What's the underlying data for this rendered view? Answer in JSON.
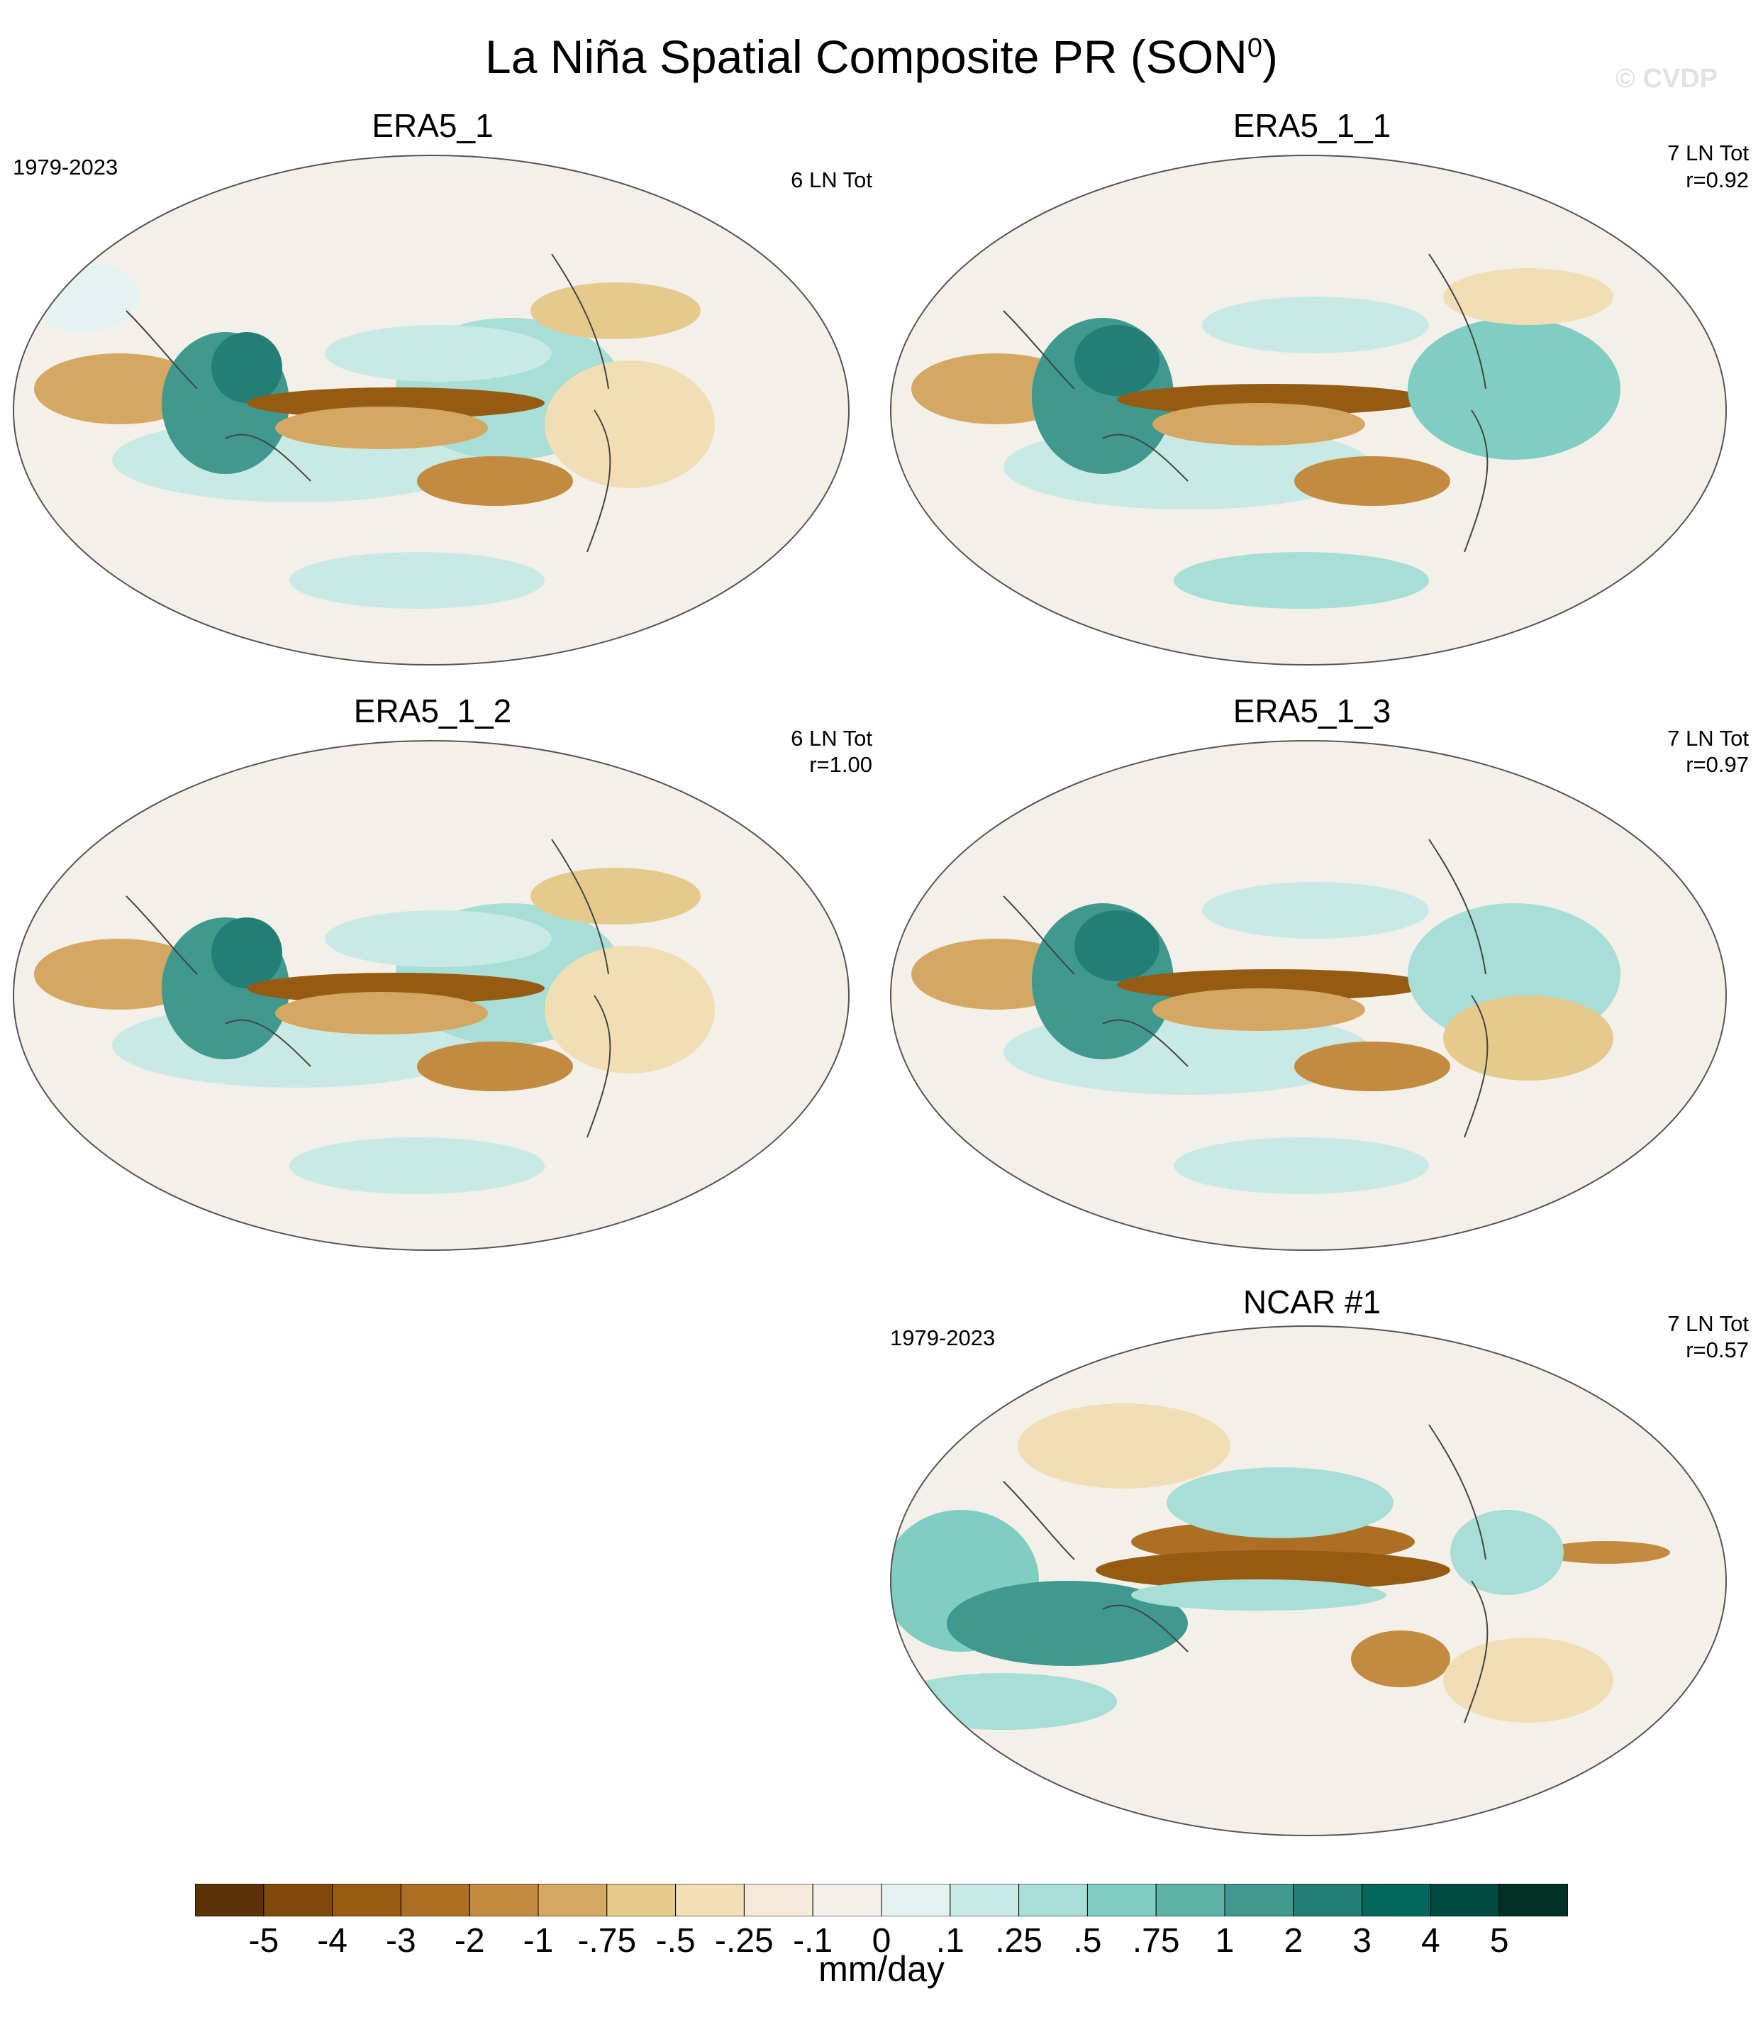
{
  "figure": {
    "title_main": "La Niña Spatial Composite PR (SON",
    "title_sup": "0",
    "title_end": ")",
    "watermark": "© CVDP"
  },
  "panels": [
    {
      "title": "ERA5_1",
      "period": "1979-2023",
      "count": "6 LN Tot",
      "corr": ""
    },
    {
      "title": "ERA5_1_1",
      "period": "",
      "count": "7 LN Tot",
      "corr": "r=0.92"
    },
    {
      "title": "ERA5_1_2",
      "period": "",
      "count": "6 LN Tot",
      "corr": "r=1.00"
    },
    {
      "title": "ERA5_1_3",
      "period": "",
      "count": "7 LN Tot",
      "corr": "r=0.97"
    },
    {
      "title": "NCAR #1",
      "period": "1979-2023",
      "count": "7 LN Tot",
      "corr": "r=0.57"
    }
  ],
  "colorbar": {
    "labels": [
      "-5",
      "-4",
      "-3",
      "-2",
      "-1",
      "-.75",
      "-.5",
      "-.25",
      "-.1",
      "0",
      ".1",
      ".25",
      ".5",
      ".75",
      "1",
      "2",
      "3",
      "4",
      "5"
    ],
    "colors": [
      "#5a3206",
      "#7d4a0c",
      "#965b13",
      "#ac6f24",
      "#c38b3f",
      "#d4a862",
      "#e6c98c",
      "#f1deb4",
      "#f5eada",
      "#f3f0ea",
      "#e6f2f1",
      "#c9eae4",
      "#a7ded5",
      "#80cdc1",
      "#5fb3a6",
      "#3f998e",
      "#237f75",
      "#05665c",
      "#004b40",
      "#003124"
    ],
    "units": "mm/day"
  }
}
